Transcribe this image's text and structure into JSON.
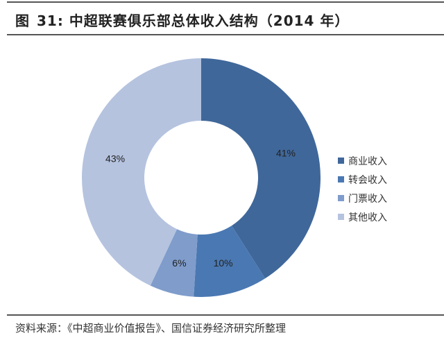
{
  "header": {
    "figure_label": "图",
    "figure_number": "31:",
    "title_text": "中超联赛俱乐部总体收入结构（2014 年）"
  },
  "chart_data": {
    "type": "pie",
    "subtype": "donut",
    "title": "中超联赛俱乐部总体收入结构（2014 年）",
    "categories": [
      "商业收入",
      "转会收入",
      "门票收入",
      "其他收入"
    ],
    "values": [
      41,
      10,
      6,
      43
    ],
    "unit": "%",
    "labels": [
      "41%",
      "10%",
      "6%",
      "43%"
    ],
    "colors": [
      "#3f679a",
      "#4a78b2",
      "#7f9ccb",
      "#b5c3df"
    ],
    "start_angle_deg": 0,
    "direction": "clockwise",
    "legend_position": "right"
  },
  "legend": {
    "items": [
      {
        "label": "商业收入",
        "color": "#3f679a"
      },
      {
        "label": "转会收入",
        "color": "#4a78b2"
      },
      {
        "label": "门票收入",
        "color": "#7f9ccb"
      },
      {
        "label": "其他收入",
        "color": "#b5c3df"
      }
    ]
  },
  "footer": {
    "source": "资料来源：《中超商业价值报告》、国信证券经济研究所整理"
  }
}
